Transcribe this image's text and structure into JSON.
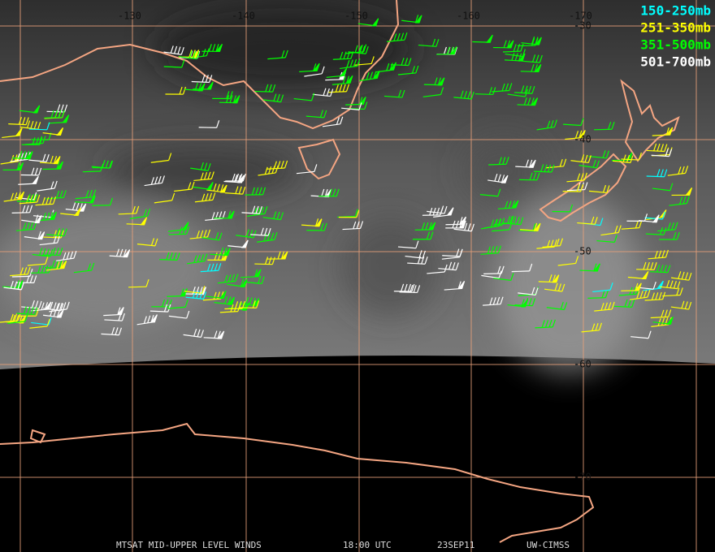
{
  "map": {
    "lon_labels": [
      "-130",
      "-140",
      "-150",
      "-160",
      "-170"
    ],
    "lat_labels": [
      "-30",
      "-40",
      "-50",
      "-60",
      "-70"
    ],
    "legend": [
      {
        "label": "150-250mb",
        "color": "#00ffff"
      },
      {
        "label": "251-350mb",
        "color": "#ffff00"
      },
      {
        "label": "351-500mb",
        "color": "#00ff00"
      },
      {
        "label": "501-700mb",
        "color": "#ffffff"
      }
    ],
    "footer": {
      "product": "MTSAT MID-UPPER LEVEL WINDS",
      "time": "18:00 UTC",
      "date": "23SEP11",
      "source": "UW-CIMSS"
    }
  }
}
